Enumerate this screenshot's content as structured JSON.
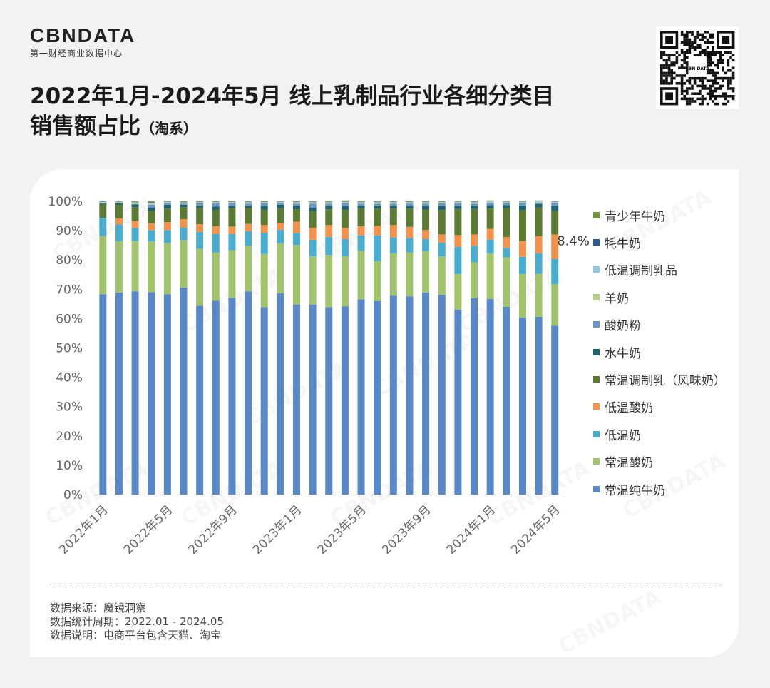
{
  "brand": {
    "name": "CBNDATA",
    "subtitle": "第一财经商业数据中心"
  },
  "qr_code": {
    "label": "CBN DATA"
  },
  "title": {
    "line1": "2022年1月-2024年5月 线上乳制品行业各细分类目",
    "line2": "销售额占比",
    "line2_suffix": "（淘系）"
  },
  "notes": {
    "source": "数据来源：魔镜洞察",
    "period": "数据统计周期：2022.01 - 2024.05",
    "explain": "数据说明：电商平台包含天猫、淘宝"
  },
  "watermark": "CBNDATA",
  "chart_data": {
    "type": "bar",
    "stacked": true,
    "ylim": [
      0,
      100
    ],
    "y_ticks": [
      "0%",
      "10%",
      "20%",
      "30%",
      "40%",
      "50%",
      "60%",
      "70%",
      "80%",
      "90%",
      "100%"
    ],
    "x_tick_labels": [
      "2022年1月",
      "2022年5月",
      "2022年9月",
      "2023年1月",
      "2023年5月",
      "2023年9月",
      "2024年1月",
      "2024年5月"
    ],
    "categories": [
      "2022-01",
      "2022-02",
      "2022-03",
      "2022-04",
      "2022-05",
      "2022-06",
      "2022-07",
      "2022-08",
      "2022-09",
      "2022-10",
      "2022-11",
      "2022-12",
      "2023-01",
      "2023-02",
      "2023-03",
      "2023-04",
      "2023-05",
      "2023-06",
      "2023-07",
      "2023-08",
      "2023-09",
      "2023-10",
      "2023-11",
      "2023-12",
      "2024-01",
      "2024-02",
      "2024-03",
      "2024-04",
      "2024-05"
    ],
    "legend_position": "right",
    "annotations": [
      {
        "text": "8.4%",
        "category": "2024-05",
        "series": "低温酸奶"
      }
    ],
    "series": [
      {
        "name": "常温纯牛奶",
        "color": "#5a87c5",
        "values": [
          68.3,
          68.9,
          69.3,
          69.0,
          68.3,
          70.6,
          64.4,
          66.1,
          67.1,
          69.3,
          63.9,
          68.6,
          64.8,
          64.8,
          63.9,
          64.2,
          66.6,
          66.0,
          67.8,
          67.6,
          68.9,
          68.1,
          63.1,
          67.0,
          66.7,
          64.0,
          60.3,
          60.6,
          57.6
        ]
      },
      {
        "name": "常温酸奶",
        "color": "#a2c36d",
        "values": [
          19.9,
          17.5,
          17.2,
          17.3,
          17.5,
          16.2,
          19.4,
          16.4,
          16.2,
          15.6,
          18.2,
          17.1,
          20.3,
          16.4,
          17.8,
          17.1,
          16.5,
          13.5,
          14.5,
          15.0,
          14.1,
          13.1,
          12.1,
          12.2,
          15.6,
          16.9,
          14.9,
          14.7,
          14.1
        ]
      },
      {
        "name": "低温奶",
        "color": "#4aadd0",
        "values": [
          6.2,
          5.7,
          4.4,
          3.9,
          4.4,
          4.2,
          5.8,
          6.3,
          5.5,
          4.9,
          7.2,
          4.6,
          4.1,
          5.7,
          6.2,
          5.8,
          5.3,
          8.9,
          5.4,
          4.9,
          4.1,
          4.7,
          9.3,
          5.6,
          4.7,
          3.2,
          5.9,
          7.0,
          8.6
        ]
      },
      {
        "name": "低温酸奶",
        "color": "#f2924d",
        "values": [
          0.0,
          2.1,
          2.4,
          2.2,
          2.7,
          2.9,
          2.6,
          2.7,
          2.6,
          2.5,
          2.6,
          2.4,
          3.8,
          4.1,
          4.0,
          3.8,
          3.1,
          3.2,
          4.2,
          3.8,
          3.1,
          2.8,
          4.0,
          3.9,
          3.6,
          3.7,
          5.3,
          5.8,
          8.4
        ]
      },
      {
        "name": "常温调制乳（风味奶）",
        "color": "#5c7a33",
        "values": [
          4.7,
          4.6,
          4.7,
          4.4,
          4.6,
          4.1,
          5.6,
          5.6,
          6.3,
          5.5,
          5.2,
          4.9,
          4.3,
          5.7,
          5.4,
          6.2,
          6.1,
          5.9,
          5.6,
          6.2,
          7.0,
          8.3,
          8.9,
          8.7,
          6.9,
          9.9,
          10.5,
          9.8,
          8.0
        ]
      },
      {
        "name": "水牛奶",
        "color": "#1f6470",
        "values": [
          0.3,
          0.5,
          0.9,
          1.1,
          1.3,
          0.8,
          0.8,
          1.1,
          0.7,
          0.6,
          1.4,
          1.2,
          1.0,
          1.2,
          1.1,
          1.3,
          0.9,
          1.1,
          1.0,
          0.9,
          1.2,
          1.4,
          1.0,
          1.1,
          1.2,
          1.0,
          1.7,
          1.2,
          1.9
        ]
      },
      {
        "name": "酸奶粉",
        "color": "#6b95c8",
        "values": [
          0.1,
          0.1,
          0.2,
          0.9,
          0.6,
          0.4,
          0.7,
          1.1,
          0.9,
          0.8,
          0.8,
          0.6,
          0.9,
          1.3,
          0.8,
          0.9,
          0.7,
          0.6,
          0.7,
          0.8,
          0.8,
          0.9,
          0.9,
          0.7,
          0.8,
          0.6,
          0.8,
          0.4,
          0.8
        ]
      },
      {
        "name": "羊奶",
        "color": "#b7cf8c",
        "values": [
          0.2,
          0.3,
          0.3,
          0.4,
          0.3,
          0.3,
          0.3,
          0.3,
          0.3,
          0.3,
          0.3,
          0.3,
          0.3,
          0.3,
          0.3,
          0.3,
          0.3,
          0.3,
          0.3,
          0.3,
          0.3,
          0.3,
          0.3,
          0.3,
          0.3,
          0.3,
          0.3,
          0.3,
          0.3
        ]
      },
      {
        "name": "低温调制乳品",
        "color": "#8ec6db",
        "values": [
          0.2,
          0.2,
          0.3,
          0.4,
          0.2,
          0.2,
          0.2,
          0.2,
          0.2,
          0.3,
          0.2,
          0.2,
          0.3,
          0.3,
          0.3,
          0.3,
          0.3,
          0.3,
          0.3,
          0.3,
          0.3,
          0.2,
          0.3,
          0.3,
          0.3,
          0.3,
          0.2,
          0.3,
          0.2
        ]
      },
      {
        "name": "牦牛奶",
        "color": "#2e5b8c",
        "values": [
          0.1,
          0.1,
          0.1,
          0.2,
          0.1,
          0.1,
          0.1,
          0.1,
          0.1,
          0.1,
          0.1,
          0.1,
          0.1,
          0.1,
          0.1,
          0.2,
          0.1,
          0.1,
          0.1,
          0.1,
          0.1,
          0.1,
          0.1,
          0.1,
          0.1,
          0.1,
          0.1,
          0.1,
          0.1
        ]
      },
      {
        "name": "青少年牛奶",
        "color": "#6d9438",
        "values": [
          0.0,
          0.0,
          0.2,
          0.2,
          0.0,
          0.2,
          0.1,
          0.1,
          0.1,
          0.1,
          0.1,
          0.0,
          0.1,
          0.1,
          0.2,
          0.2,
          0.1,
          0.1,
          0.1,
          0.1,
          0.1,
          0.1,
          0.1,
          0.1,
          0.1,
          0.0,
          0.0,
          0.1,
          0.0
        ]
      }
    ]
  }
}
